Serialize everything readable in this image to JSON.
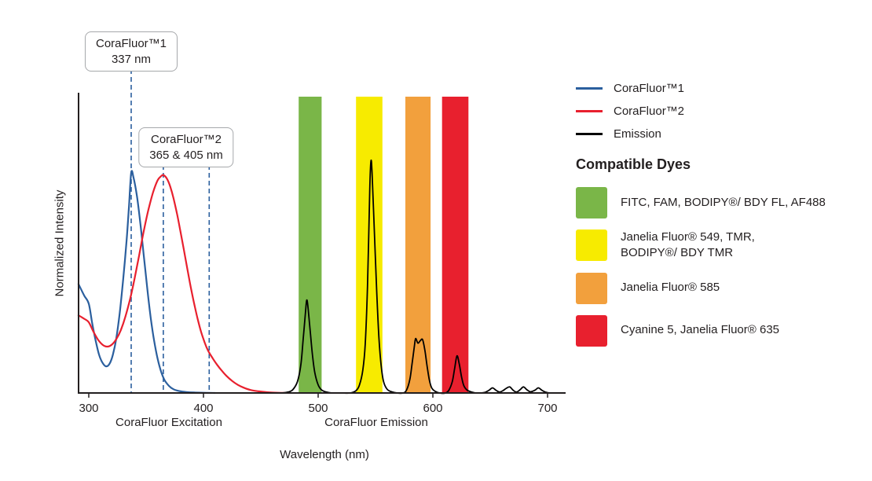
{
  "chart_data": {
    "type": "line",
    "title": "",
    "xlabel": "Wavelength (nm)",
    "ylabel": "Normalized Intensity",
    "x_ticks": [
      300,
      400,
      500,
      600,
      700
    ],
    "xlim": [
      291,
      715
    ],
    "ylim": [
      0,
      1.05
    ],
    "grid": false,
    "legend_position": "right",
    "dash_color": "#2b5f9e",
    "axis_group_labels": [
      {
        "text": "CoraFluor Excitation",
        "center_nm": 370
      },
      {
        "text": "CoraFluor Emission",
        "center_nm": 551
      }
    ],
    "annotations": [
      {
        "lines": [
          "CoraFluor™1",
          "337 nm"
        ],
        "marks_nm": [
          337
        ]
      },
      {
        "lines": [
          "CoraFluor™2",
          "365 & 405 nm"
        ],
        "marks_nm": [
          365,
          405
        ]
      }
    ],
    "bands": [
      {
        "name": "FITC, FAM, BODIPY®/ BDY FL, AF488",
        "color": "#7ab648",
        "range_nm": [
          483,
          503
        ]
      },
      {
        "name": "Janelia Fluor® 549, TMR, BODIPY®/ BDY TMR",
        "color": "#f7eb00",
        "range_nm": [
          533,
          556
        ]
      },
      {
        "name": "Janelia Fluor® 585",
        "color": "#f2a03d",
        "range_nm": [
          576,
          598
        ]
      },
      {
        "name": "Cyanine 5, Janelia Fluor® 635",
        "color": "#e8202e",
        "range_nm": [
          608,
          631
        ]
      }
    ],
    "series": [
      {
        "name": "CoraFluor™1",
        "color": "#2b5f9e",
        "points": [
          [
            291,
            0.47
          ],
          [
            296,
            0.42
          ],
          [
            300,
            0.385
          ],
          [
            303,
            0.3
          ],
          [
            306,
            0.225
          ],
          [
            309,
            0.165
          ],
          [
            312,
            0.13
          ],
          [
            315,
            0.115
          ],
          [
            318,
            0.125
          ],
          [
            321,
            0.165
          ],
          [
            324,
            0.235
          ],
          [
            327,
            0.345
          ],
          [
            330,
            0.49
          ],
          [
            333,
            0.66
          ],
          [
            335,
            0.8
          ],
          [
            337,
            0.95
          ],
          [
            339,
            0.93
          ],
          [
            342,
            0.85
          ],
          [
            345,
            0.73
          ],
          [
            348,
            0.59
          ],
          [
            351,
            0.45
          ],
          [
            354,
            0.325
          ],
          [
            357,
            0.225
          ],
          [
            360,
            0.148
          ],
          [
            363,
            0.093
          ],
          [
            366,
            0.056
          ],
          [
            370,
            0.03
          ],
          [
            374,
            0.016
          ],
          [
            379,
            0.008
          ],
          [
            385,
            0.004
          ],
          [
            392,
            0.002
          ],
          [
            400,
            0.001
          ],
          [
            410,
            0
          ]
        ]
      },
      {
        "name": "CoraFluor™2",
        "color": "#e8202e",
        "points": [
          [
            291,
            0.335
          ],
          [
            296,
            0.32
          ],
          [
            300,
            0.305
          ],
          [
            304,
            0.265
          ],
          [
            308,
            0.23
          ],
          [
            312,
            0.208
          ],
          [
            316,
            0.2
          ],
          [
            320,
            0.208
          ],
          [
            324,
            0.232
          ],
          [
            328,
            0.272
          ],
          [
            332,
            0.33
          ],
          [
            336,
            0.405
          ],
          [
            340,
            0.495
          ],
          [
            344,
            0.595
          ],
          [
            348,
            0.7
          ],
          [
            352,
            0.79
          ],
          [
            356,
            0.865
          ],
          [
            360,
            0.917
          ],
          [
            363,
            0.935
          ],
          [
            365,
            0.94
          ],
          [
            368,
            0.925
          ],
          [
            371,
            0.89
          ],
          [
            374,
            0.838
          ],
          [
            377,
            0.772
          ],
          [
            380,
            0.695
          ],
          [
            383,
            0.615
          ],
          [
            386,
            0.533
          ],
          [
            389,
            0.455
          ],
          [
            392,
            0.383
          ],
          [
            395,
            0.318
          ],
          [
            398,
            0.262
          ],
          [
            401,
            0.218
          ],
          [
            404,
            0.183
          ],
          [
            408,
            0.15
          ],
          [
            412,
            0.121
          ],
          [
            416,
            0.096
          ],
          [
            420,
            0.074
          ],
          [
            425,
            0.052
          ],
          [
            430,
            0.035
          ],
          [
            435,
            0.023
          ],
          [
            441,
            0.013
          ],
          [
            448,
            0.007
          ],
          [
            456,
            0.003
          ],
          [
            465,
            0.001
          ],
          [
            475,
            0
          ]
        ]
      },
      {
        "name": "Emission",
        "color": "#000000",
        "points": [
          [
            430,
            0
          ],
          [
            455,
            0
          ],
          [
            468,
            0
          ],
          [
            474,
            0.004
          ],
          [
            478,
            0.015
          ],
          [
            482,
            0.05
          ],
          [
            485,
            0.125
          ],
          [
            487,
            0.235
          ],
          [
            489,
            0.35
          ],
          [
            490,
            0.4
          ],
          [
            491,
            0.375
          ],
          [
            493,
            0.27
          ],
          [
            495,
            0.165
          ],
          [
            497,
            0.09
          ],
          [
            500,
            0.035
          ],
          [
            503,
            0.013
          ],
          [
            507,
            0.004
          ],
          [
            512,
            0
          ],
          [
            520,
            0
          ],
          [
            528,
            0
          ],
          [
            533,
            0.01
          ],
          [
            536,
            0.035
          ],
          [
            539,
            0.1
          ],
          [
            541,
            0.21
          ],
          [
            543,
            0.46
          ],
          [
            545,
            0.88
          ],
          [
            546,
            1.0
          ],
          [
            547,
            0.95
          ],
          [
            549,
            0.7
          ],
          [
            551,
            0.44
          ],
          [
            553,
            0.235
          ],
          [
            555,
            0.115
          ],
          [
            557,
            0.05
          ],
          [
            560,
            0.017
          ],
          [
            564,
            0.005
          ],
          [
            569,
            0
          ],
          [
            574,
            0
          ],
          [
            577,
            0.012
          ],
          [
            580,
            0.06
          ],
          [
            582,
            0.13
          ],
          [
            584,
            0.205
          ],
          [
            585,
            0.235
          ],
          [
            587,
            0.215
          ],
          [
            589,
            0.225
          ],
          [
            591,
            0.23
          ],
          [
            593,
            0.185
          ],
          [
            595,
            0.115
          ],
          [
            597,
            0.055
          ],
          [
            599,
            0.022
          ],
          [
            602,
            0.007
          ],
          [
            606,
            0
          ],
          [
            611,
            0
          ],
          [
            614,
            0.012
          ],
          [
            617,
            0.05
          ],
          [
            619,
            0.105
          ],
          [
            621,
            0.16
          ],
          [
            623,
            0.125
          ],
          [
            625,
            0.07
          ],
          [
            627,
            0.032
          ],
          [
            630,
            0.012
          ],
          [
            634,
            0.004
          ],
          [
            638,
            0
          ],
          [
            645,
            0.002
          ],
          [
            649,
            0.012
          ],
          [
            652,
            0.022
          ],
          [
            655,
            0.012
          ],
          [
            658,
            0.004
          ],
          [
            661,
            0.01
          ],
          [
            664,
            0.02
          ],
          [
            667,
            0.026
          ],
          [
            670,
            0.012
          ],
          [
            673,
            0.004
          ],
          [
            676,
            0.014
          ],
          [
            679,
            0.026
          ],
          [
            682,
            0.014
          ],
          [
            685,
            0.005
          ],
          [
            689,
            0.012
          ],
          [
            692,
            0.022
          ],
          [
            695,
            0.012
          ],
          [
            698,
            0.004
          ],
          [
            702,
            0
          ],
          [
            712,
            0
          ]
        ]
      }
    ]
  },
  "legend": {
    "lines": [
      {
        "label": "CoraFluor™1",
        "color": "#2b5f9e"
      },
      {
        "label": "CoraFluor™2",
        "color": "#e8202e"
      },
      {
        "label": "Emission",
        "color": "#000000"
      }
    ],
    "dyes_heading": "Compatible Dyes",
    "dyes": [
      {
        "lines": [
          "FITC, FAM, BODIPY®/ BDY FL, AF488"
        ],
        "color": "#7ab648"
      },
      {
        "lines": [
          "Janelia Fluor® 549, TMR,",
          "BODIPY®/ BDY TMR"
        ],
        "color": "#f7eb00"
      },
      {
        "lines": [
          "Janelia Fluor® 585"
        ],
        "color": "#f2a03d"
      },
      {
        "lines": [
          "Cyanine 5, Janelia Fluor® 635"
        ],
        "color": "#e8202e"
      }
    ]
  }
}
